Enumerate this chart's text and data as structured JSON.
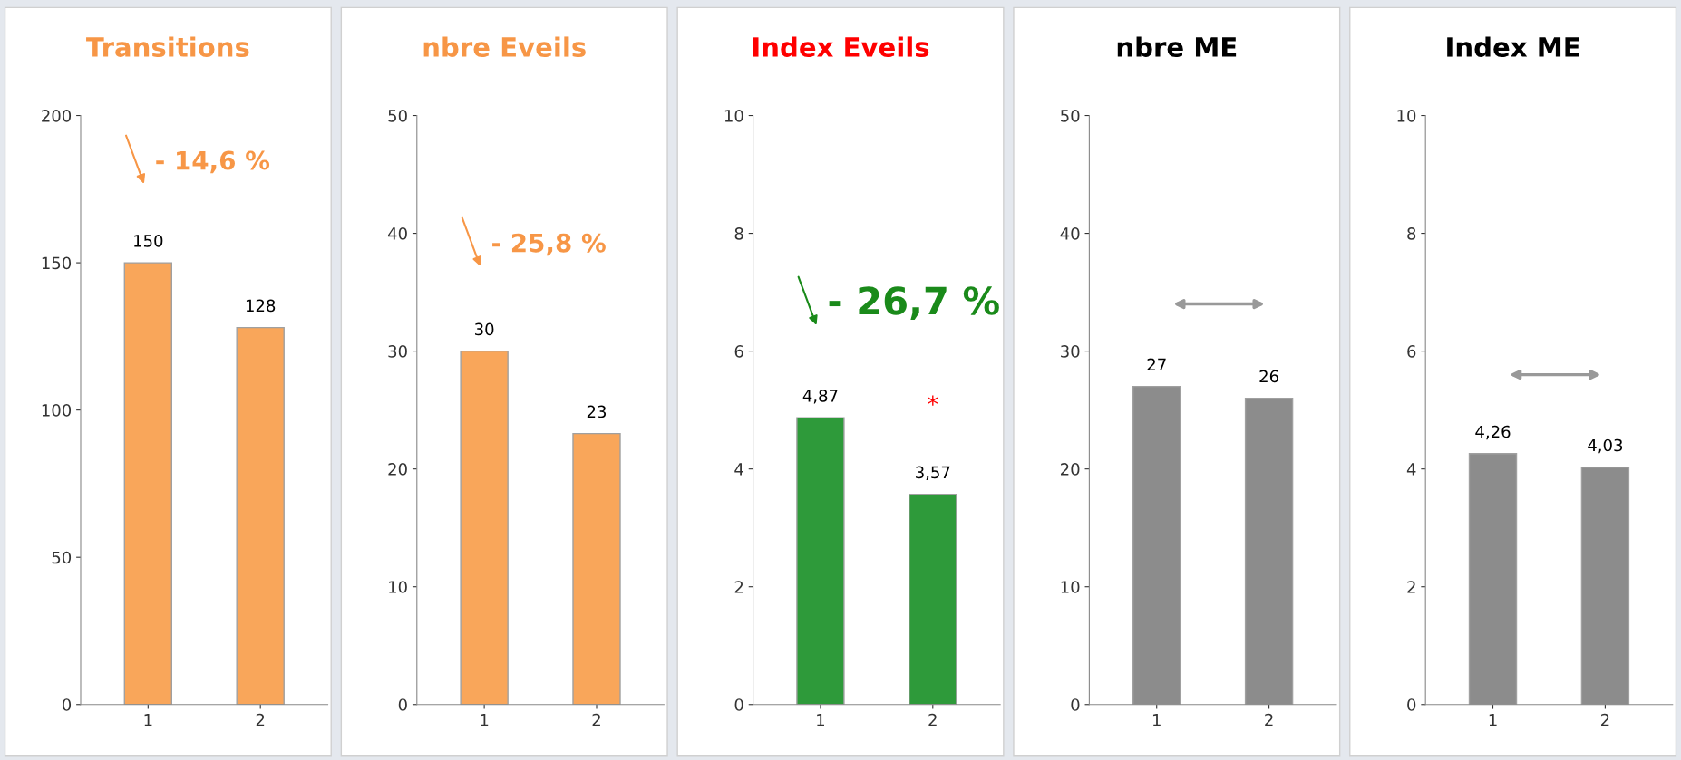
{
  "chart_data": [
    {
      "type": "bar",
      "title": "Transitions",
      "categories": [
        "1",
        "2"
      ],
      "series": [
        {
          "color": "#f9a65a",
          "values": [
            150,
            128
          ],
          "value_labels": [
            "150",
            "128"
          ]
        }
      ],
      "ylim": [
        0,
        200
      ],
      "yticks": [
        0,
        50,
        100,
        150,
        200
      ],
      "annotations": [
        "- 14,6 %"
      ]
    },
    {
      "type": "bar",
      "title": "nbre Eveils",
      "categories": [
        "1",
        "2"
      ],
      "series": [
        {
          "color": "#f9a65a",
          "values": [
            30,
            23
          ],
          "value_labels": [
            "30",
            "23"
          ]
        }
      ],
      "ylim": [
        0,
        50
      ],
      "yticks": [
        0,
        10,
        20,
        30,
        40,
        50
      ],
      "annotations": [
        "- 25,8 %"
      ]
    },
    {
      "type": "bar",
      "title": "Index Eveils",
      "categories": [
        "1",
        "2"
      ],
      "series": [
        {
          "color": "#2e9a3a",
          "values": [
            4.87,
            3.57
          ],
          "value_labels": [
            "4,87",
            "3,57"
          ]
        }
      ],
      "ylim": [
        0,
        10
      ],
      "yticks": [
        0,
        2,
        4,
        6,
        8,
        10
      ],
      "annotations": [
        "- 26,7 %",
        "*"
      ]
    },
    {
      "type": "bar",
      "title": "nbre ME",
      "categories": [
        "1",
        "2"
      ],
      "series": [
        {
          "color": "#8c8c8c",
          "values": [
            27,
            26
          ],
          "value_labels": [
            "27",
            "26"
          ]
        }
      ],
      "ylim": [
        0,
        50
      ],
      "yticks": [
        0,
        10,
        20,
        30,
        40,
        50
      ]
    },
    {
      "type": "bar",
      "title": "Index ME",
      "categories": [
        "1",
        "2"
      ],
      "series": [
        {
          "color": "#8c8c8c",
          "values": [
            4.26,
            4.03
          ],
          "value_labels": [
            "4,26",
            "4,03"
          ]
        }
      ],
      "ylim": [
        0,
        10
      ],
      "yticks": [
        0,
        2,
        4,
        6,
        8,
        10
      ]
    }
  ]
}
